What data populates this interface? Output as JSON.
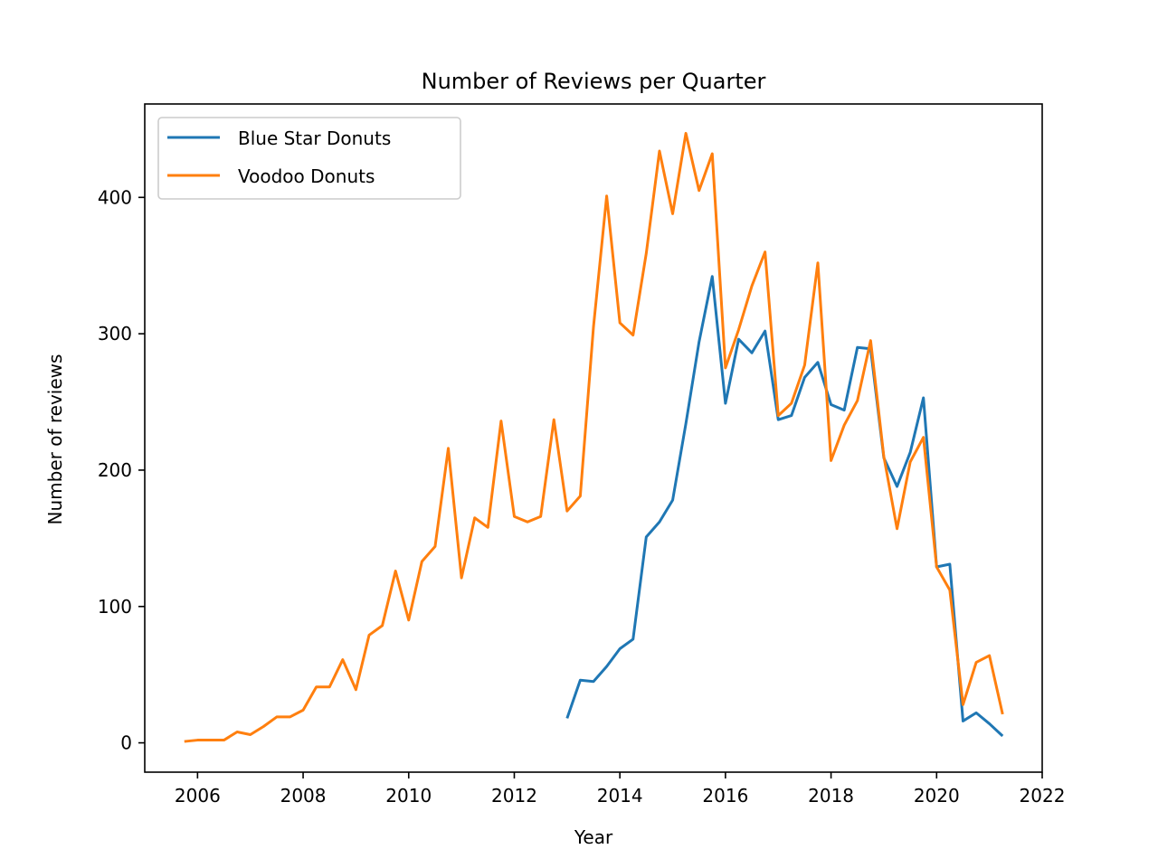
{
  "chart_data": {
    "type": "line",
    "title": "Number of Reviews per Quarter",
    "xlabel": "Year",
    "ylabel": "Number of reviews",
    "xlim": [
      2005.0,
      2022.0
    ],
    "ylim": [
      -21.5,
      468.5
    ],
    "xticks": [
      2006,
      2008,
      2010,
      2012,
      2014,
      2016,
      2018,
      2020,
      2022
    ],
    "yticks": [
      0,
      100,
      200,
      300,
      400
    ],
    "grid": false,
    "legend_position": "top-left",
    "series": [
      {
        "name": "Blue Star Donuts",
        "color": "#1f77b4",
        "points": [
          [
            2013.0,
            18
          ],
          [
            2013.25,
            46
          ],
          [
            2013.5,
            45
          ],
          [
            2013.75,
            56
          ],
          [
            2014.0,
            69
          ],
          [
            2014.25,
            76
          ],
          [
            2014.5,
            151
          ],
          [
            2014.75,
            162
          ],
          [
            2015.0,
            178
          ],
          [
            2015.25,
            234
          ],
          [
            2015.5,
            294
          ],
          [
            2015.75,
            342
          ],
          [
            2016.0,
            249
          ],
          [
            2016.25,
            296
          ],
          [
            2016.5,
            286
          ],
          [
            2016.75,
            302
          ],
          [
            2017.0,
            237
          ],
          [
            2017.25,
            240
          ],
          [
            2017.5,
            268
          ],
          [
            2017.75,
            279
          ],
          [
            2018.0,
            248
          ],
          [
            2018.25,
            244
          ],
          [
            2018.5,
            290
          ],
          [
            2018.75,
            289
          ],
          [
            2019.0,
            209
          ],
          [
            2019.25,
            188
          ],
          [
            2019.5,
            213
          ],
          [
            2019.75,
            253
          ],
          [
            2020.0,
            129
          ],
          [
            2020.25,
            131
          ],
          [
            2020.5,
            16
          ],
          [
            2020.75,
            22
          ],
          [
            2021.0,
            14
          ],
          [
            2021.25,
            5
          ]
        ]
      },
      {
        "name": "Voodoo Donuts",
        "color": "#ff7f0e",
        "points": [
          [
            2005.75,
            1
          ],
          [
            2006.0,
            2
          ],
          [
            2006.25,
            2
          ],
          [
            2006.5,
            2
          ],
          [
            2006.75,
            8
          ],
          [
            2007.0,
            6
          ],
          [
            2007.25,
            12
          ],
          [
            2007.5,
            19
          ],
          [
            2007.75,
            19
          ],
          [
            2008.0,
            24
          ],
          [
            2008.25,
            41
          ],
          [
            2008.5,
            41
          ],
          [
            2008.75,
            61
          ],
          [
            2009.0,
            39
          ],
          [
            2009.25,
            79
          ],
          [
            2009.5,
            86
          ],
          [
            2009.75,
            126
          ],
          [
            2010.0,
            90
          ],
          [
            2010.25,
            133
          ],
          [
            2010.5,
            144
          ],
          [
            2010.75,
            216
          ],
          [
            2011.0,
            121
          ],
          [
            2011.25,
            165
          ],
          [
            2011.5,
            158
          ],
          [
            2011.75,
            236
          ],
          [
            2012.0,
            166
          ],
          [
            2012.25,
            162
          ],
          [
            2012.5,
            166
          ],
          [
            2012.75,
            237
          ],
          [
            2013.0,
            170
          ],
          [
            2013.25,
            181
          ],
          [
            2013.5,
            305
          ],
          [
            2013.75,
            401
          ],
          [
            2014.0,
            308
          ],
          [
            2014.25,
            299
          ],
          [
            2014.5,
            359
          ],
          [
            2014.75,
            434
          ],
          [
            2015.0,
            388
          ],
          [
            2015.25,
            447
          ],
          [
            2015.5,
            405
          ],
          [
            2015.75,
            432
          ],
          [
            2016.0,
            275
          ],
          [
            2016.25,
            303
          ],
          [
            2016.5,
            335
          ],
          [
            2016.75,
            360
          ],
          [
            2017.0,
            240
          ],
          [
            2017.25,
            249
          ],
          [
            2017.5,
            277
          ],
          [
            2017.75,
            352
          ],
          [
            2018.0,
            207
          ],
          [
            2018.25,
            233
          ],
          [
            2018.5,
            251
          ],
          [
            2018.75,
            295
          ],
          [
            2019.0,
            210
          ],
          [
            2019.25,
            157
          ],
          [
            2019.5,
            206
          ],
          [
            2019.75,
            224
          ],
          [
            2020.0,
            129
          ],
          [
            2020.25,
            112
          ],
          [
            2020.5,
            28
          ],
          [
            2020.75,
            59
          ],
          [
            2021.0,
            64
          ],
          [
            2021.25,
            21
          ]
        ]
      }
    ]
  }
}
